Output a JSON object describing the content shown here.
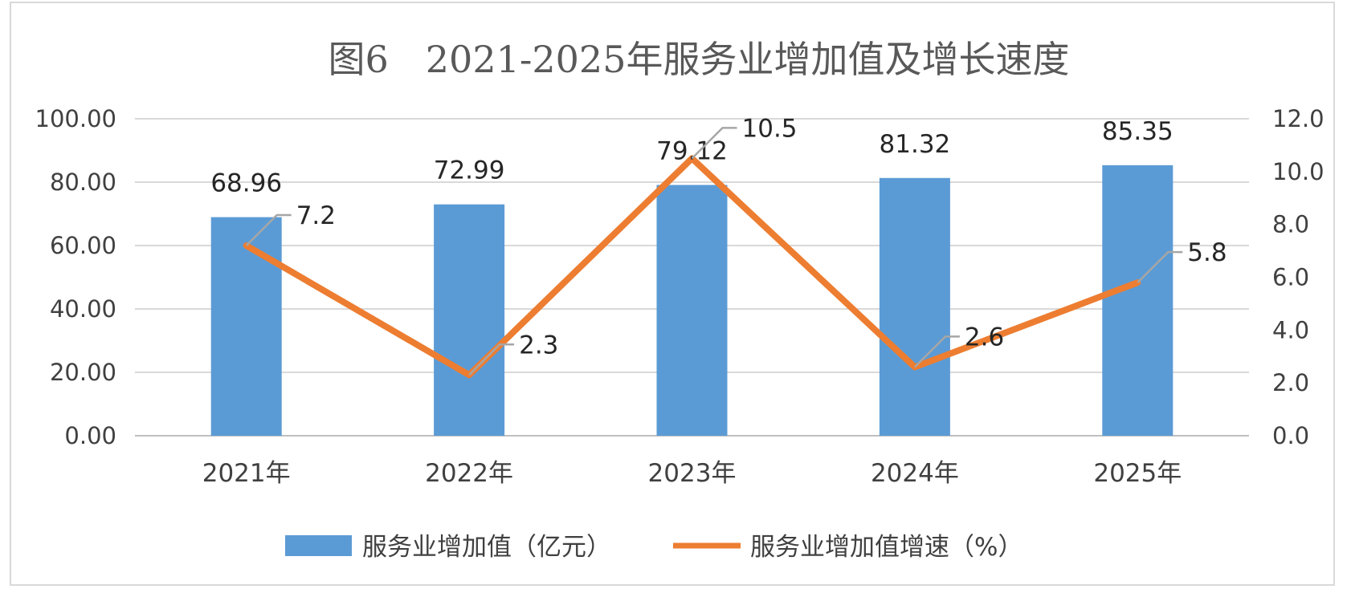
{
  "chart_data": {
    "type": "bar+line",
    "title": "图6　2021-2025年服务业增加值及增长速度",
    "categories": [
      "2021年",
      "2022年",
      "2023年",
      "2024年",
      "2025年"
    ],
    "series": [
      {
        "name": "服务业增加值（亿元）",
        "type": "bar",
        "axis": "left",
        "values": [
          68.96,
          72.99,
          79.12,
          81.32,
          85.35
        ],
        "labels": [
          "68.96",
          "72.99",
          "79.12",
          "81.32",
          "85.35"
        ],
        "color": "#5b9bd5"
      },
      {
        "name": "服务业增加值增速（%）",
        "type": "line",
        "axis": "right",
        "values": [
          7.2,
          2.3,
          10.5,
          2.6,
          5.8
        ],
        "labels": [
          "7.2",
          "2.3",
          "10.5",
          "2.6",
          "5.8"
        ],
        "color": "#ed7d31"
      }
    ],
    "y_left": {
      "min": 0,
      "max": 100,
      "step": 20,
      "ticks": [
        "0.00",
        "20.00",
        "40.00",
        "60.00",
        "80.00",
        "100.00"
      ]
    },
    "y_right": {
      "min": 0,
      "max": 12,
      "step": 2,
      "ticks": [
        "0.0",
        "2.0",
        "4.0",
        "6.0",
        "8.0",
        "10.0",
        "12.0"
      ]
    },
    "grid": true,
    "legend_position": "bottom"
  }
}
